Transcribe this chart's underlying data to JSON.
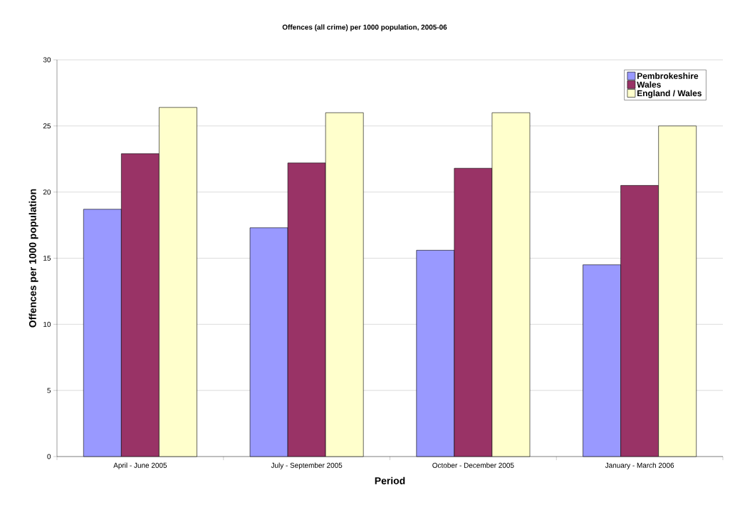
{
  "chart_data": {
    "type": "bar",
    "title": "Offences (all crime) per 1000 population, 2005-06",
    "xlabel": "Period",
    "ylabel": "Offences per 1000 population",
    "categories": [
      "April - June 2005",
      "July - September 2005",
      "October - December 2005",
      "January - March 2006"
    ],
    "series": [
      {
        "name": "Pembrokeshire",
        "color": "#9999ff",
        "values": [
          18.7,
          17.3,
          15.6,
          14.5
        ]
      },
      {
        "name": "Wales",
        "color": "#993366",
        "values": [
          22.9,
          22.2,
          21.8,
          20.5
        ]
      },
      {
        "name": "England / Wales",
        "color": "#ffffcc",
        "values": [
          26.4,
          26.0,
          26.0,
          25.0
        ]
      }
    ],
    "ylim": [
      0,
      30
    ],
    "yticks": [
      0,
      5,
      10,
      15,
      20,
      25,
      30
    ],
    "grid": "y",
    "legend": "top right"
  }
}
